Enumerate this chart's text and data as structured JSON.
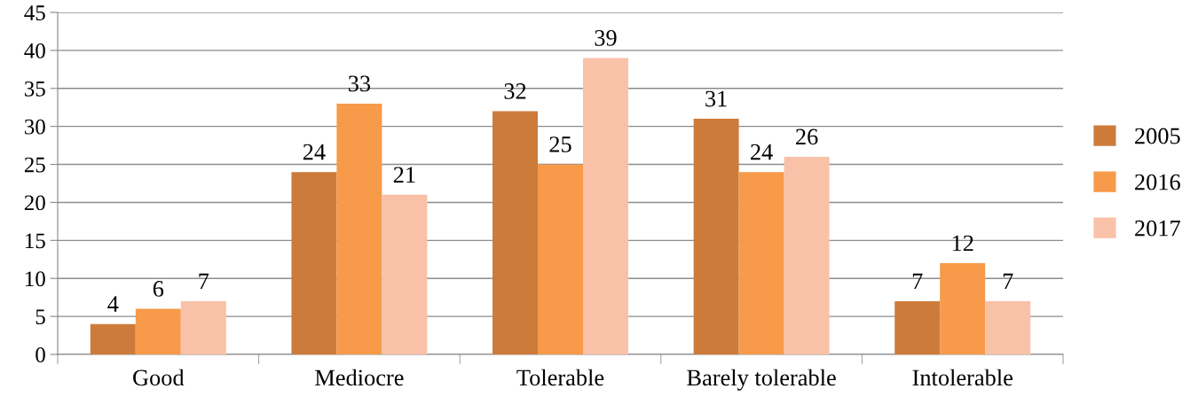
{
  "chart_data": {
    "type": "bar",
    "categories": [
      "Good",
      "Mediocre",
      "Tolerable",
      "Barely tolerable",
      "Intolerable"
    ],
    "series": [
      {
        "name": "2005",
        "color": "#cd7b3b",
        "values": [
          4,
          24,
          32,
          31,
          7
        ]
      },
      {
        "name": "2016",
        "color": "#f79a4a",
        "values": [
          6,
          33,
          25,
          24,
          12
        ]
      },
      {
        "name": "2017",
        "color": "#f9c1a7",
        "values": [
          7,
          21,
          39,
          26,
          7
        ]
      }
    ],
    "ylim": [
      0,
      45
    ],
    "yticks": [
      0,
      5,
      10,
      15,
      20,
      25,
      30,
      35,
      40,
      45
    ],
    "grid": "y",
    "legend": "right",
    "data_labels": true
  }
}
